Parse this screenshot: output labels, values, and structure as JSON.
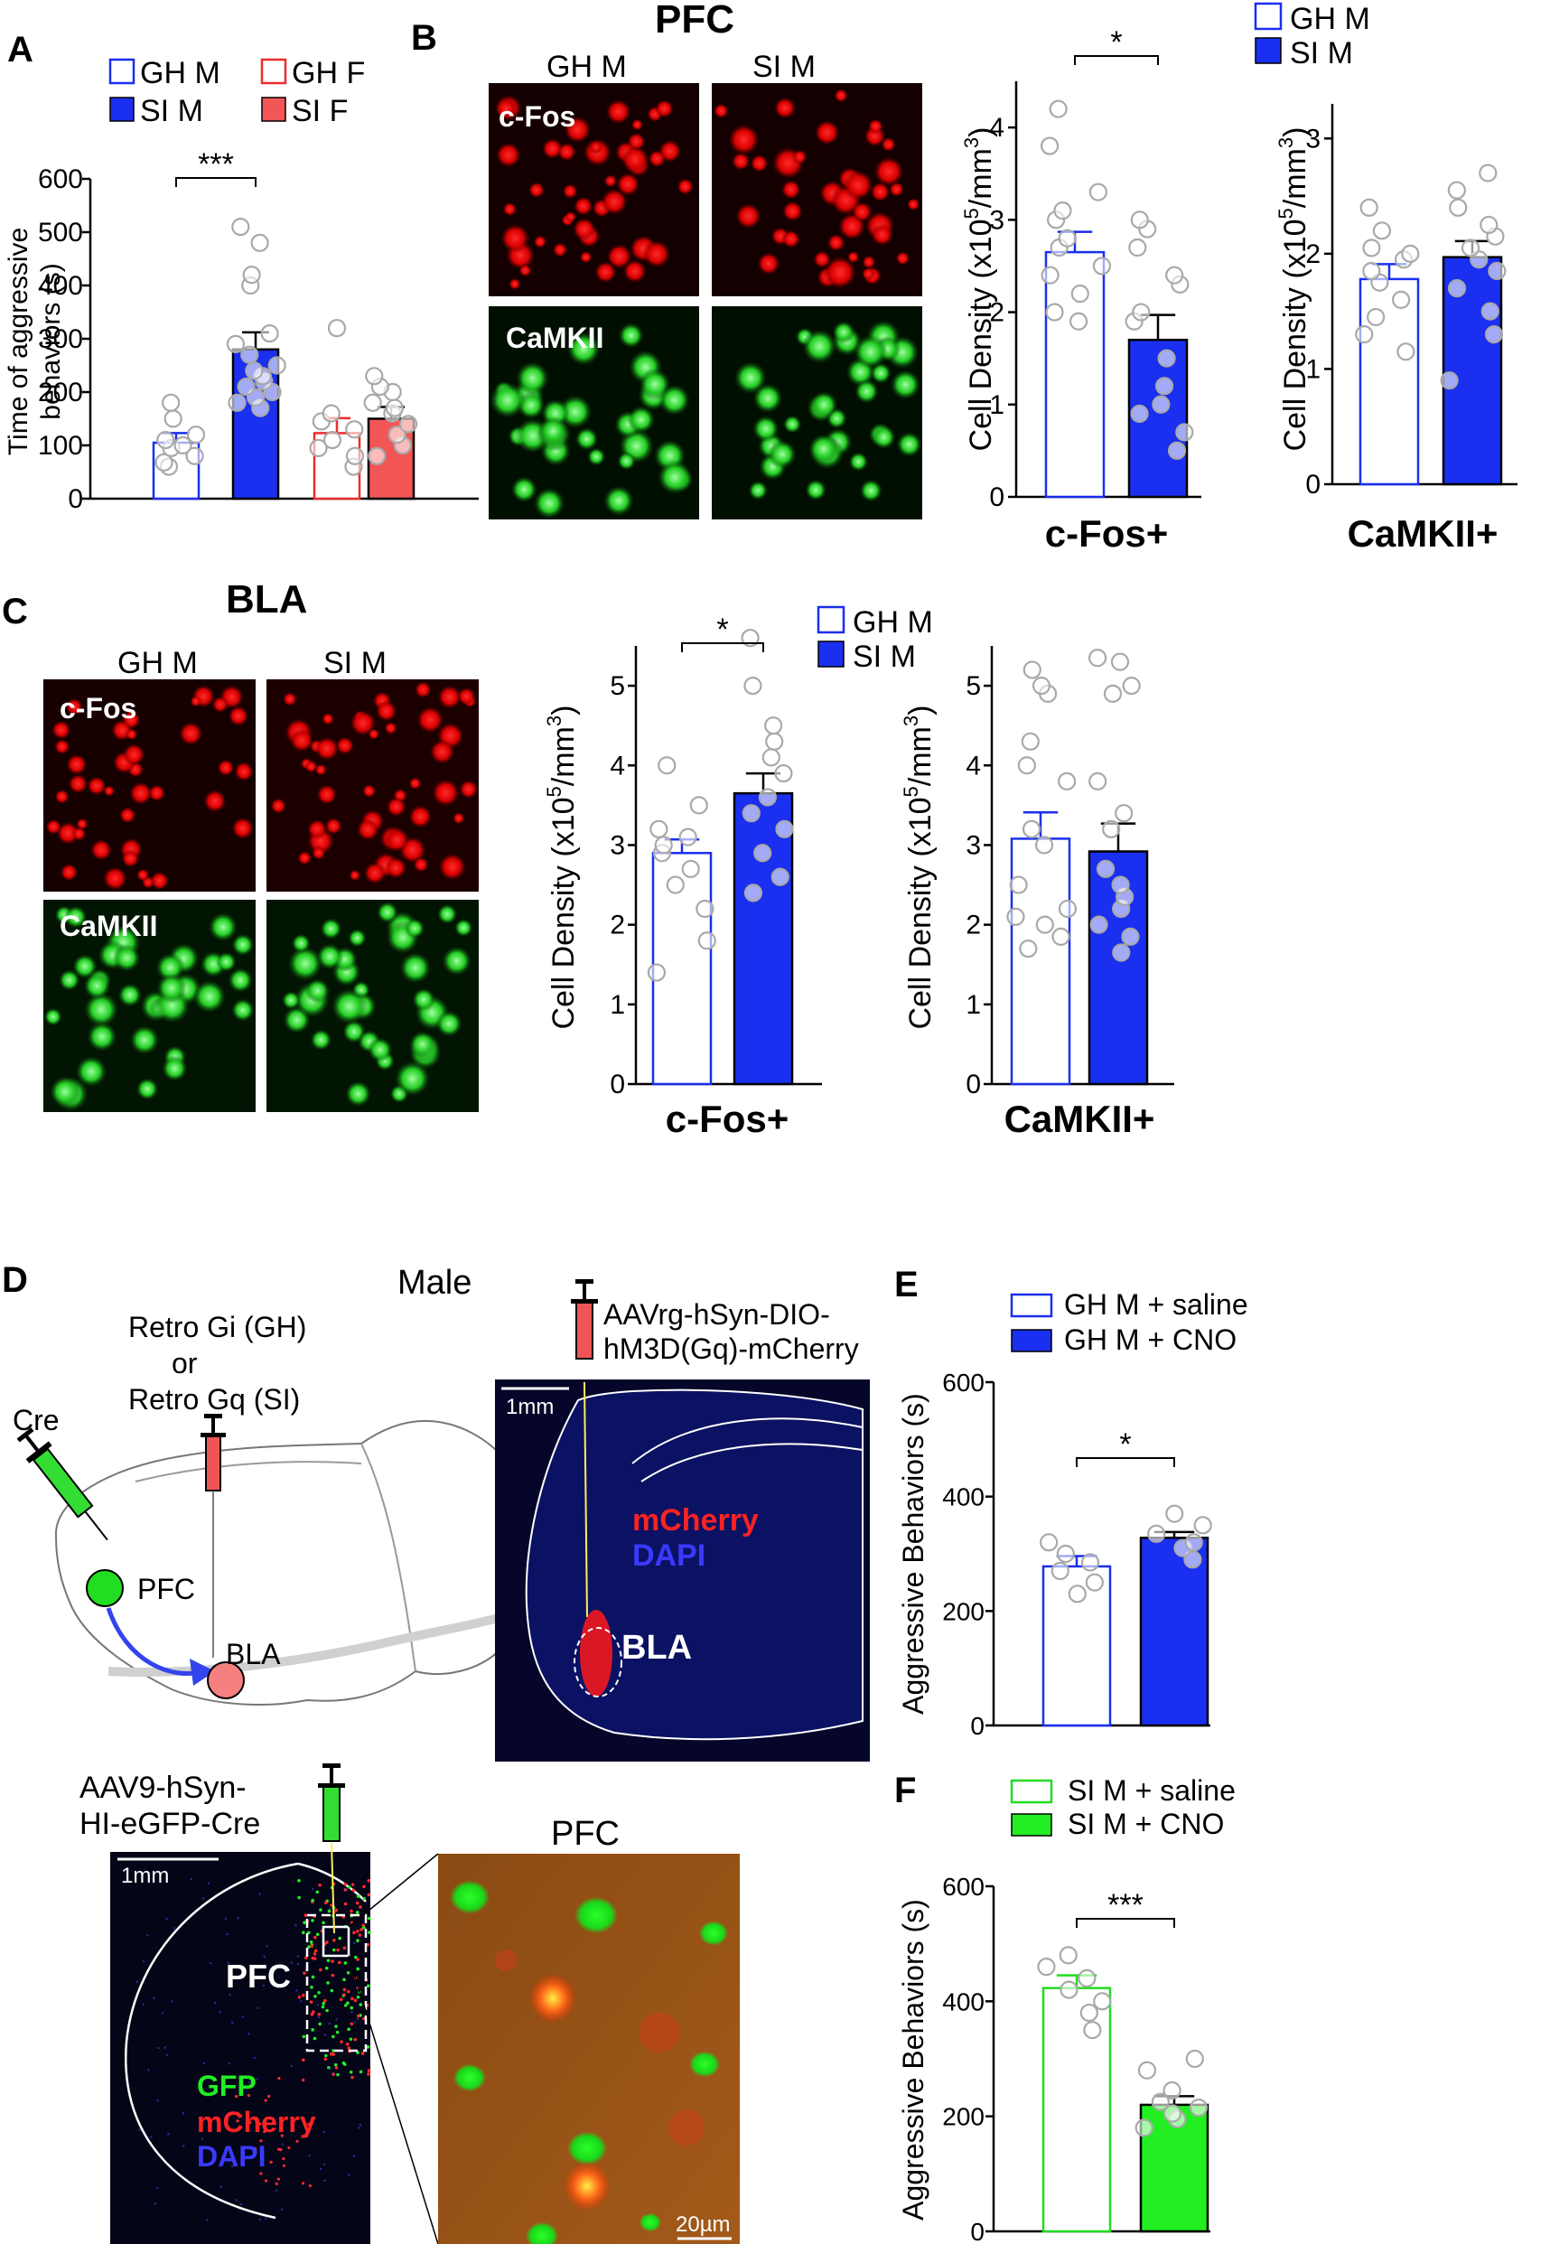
{
  "colors": {
    "gh": "#1a2ff0",
    "si": "#1a2ff0",
    "ghf": "#ee2b2b",
    "sif": "#f25656",
    "dot": "#a9a9a9",
    "green": "#22dd22",
    "red": "#ee1111",
    "blue": "#3333ff"
  },
  "panels": {
    "A": "A",
    "B": "B",
    "C": "C",
    "D": "D",
    "E": "E",
    "F": "F"
  },
  "sig": {
    "a": "***",
    "b": "*",
    "c": "*",
    "e": "*",
    "f": "***"
  },
  "micro": {
    "pfc_title": "PFC",
    "bla_title": "BLA",
    "col_gh": "GH M",
    "col_si": "SI M",
    "row_cfos": "c-Fos",
    "row_camk": "CaMKII"
  },
  "diagram": {
    "cre": "Cre",
    "retro1": "Retro Gi (GH)",
    "retro2": "or",
    "retro3": "Retro Gq (SI)",
    "pfc": "PFC",
    "bla": "BLA",
    "male": "Male",
    "aav_rg1": "AAVrg-hSyn-DIO-",
    "aav_rg2": "hM3D(Gq)-mCherry",
    "scale1": "1mm",
    "mcherry": "mCherry",
    "dapi": "DAPI",
    "bla_label": "BLA",
    "aav9_1": "AAV9-hSyn-",
    "aav9_2": "HI-eGFP-Cre",
    "scale2": "1mm",
    "pfc_label": "PFC",
    "gfp": "GFP",
    "mcherry2": "mCherry",
    "dapi2": "DAPI",
    "zoom_title": "PFC",
    "scale3": "20µm"
  },
  "chart_data": [
    {
      "id": "A",
      "type": "bar",
      "categories": [
        "GH M",
        "SI M",
        "GH F",
        "SI F"
      ],
      "values": [
        105,
        280,
        123,
        150
      ],
      "errors": [
        18,
        32,
        28,
        22
      ],
      "points": [
        [
          60,
          68,
          80,
          95,
          100,
          110,
          120,
          150,
          180
        ],
        [
          170,
          180,
          190,
          200,
          210,
          220,
          230,
          240,
          250,
          270,
          290,
          310,
          400,
          420,
          480,
          510
        ],
        [
          60,
          80,
          95,
          110,
          130,
          145,
          160,
          320
        ],
        [
          80,
          100,
          120,
          140,
          160,
          170,
          180,
          200,
          210,
          230
        ]
      ],
      "legend": [
        "GH M",
        "SI M",
        "GH F",
        "SI F"
      ],
      "ylabel1": "Time of aggressive",
      "ylabel2": "behaviors (s)",
      "ylim": [
        0,
        600
      ],
      "yticks": [
        "0",
        "100",
        "200",
        "300",
        "400",
        "500",
        "600"
      ]
    },
    {
      "id": "B1",
      "type": "bar",
      "categories": [
        "GH M",
        "SI M"
      ],
      "values": [
        2.65,
        1.7
      ],
      "errors": [
        0.22,
        0.27
      ],
      "points": [
        [
          1.9,
          2.0,
          2.2,
          2.4,
          2.5,
          2.7,
          2.8,
          3.0,
          3.1,
          3.3,
          3.8,
          4.2
        ],
        [
          0.5,
          0.7,
          0.9,
          1.0,
          1.2,
          1.5,
          1.9,
          2.0,
          2.3,
          2.4,
          2.7,
          2.9,
          3.0
        ]
      ],
      "xlabel": "c-Fos+",
      "ylabel": "Cell Density (x10",
      "ylabel_sup": "5",
      "ylabel_unit": "/mm",
      "ylabel_sup2": "3",
      "ylabel_end": ")",
      "ylim": [
        0,
        4.5
      ],
      "yticks": [
        "0",
        "1",
        "2",
        "3",
        "4"
      ],
      "legend": [
        "GH M",
        "SI M"
      ]
    },
    {
      "id": "B2",
      "type": "bar",
      "categories": [
        "GH M",
        "SI M"
      ],
      "values": [
        1.78,
        1.97
      ],
      "errors": [
        0.13,
        0.14
      ],
      "points": [
        [
          1.15,
          1.3,
          1.45,
          1.6,
          1.75,
          1.85,
          1.95,
          2.0,
          2.05,
          2.2,
          2.4
        ],
        [
          0.9,
          1.3,
          1.5,
          1.7,
          1.85,
          1.95,
          2.05,
          2.15,
          2.25,
          2.4,
          2.55,
          2.7
        ]
      ],
      "xlabel": "CaMKII+",
      "ylabel": "Cell Density (x10",
      "ylabel_sup": "5",
      "ylabel_unit": "/mm",
      "ylabel_sup2": "3",
      "ylabel_end": ")",
      "ylim": [
        0,
        3.3
      ],
      "yticks": [
        "0",
        "1",
        "2",
        "3"
      ]
    },
    {
      "id": "C1",
      "type": "bar",
      "categories": [
        "GH M",
        "SI M"
      ],
      "values": [
        2.9,
        3.65
      ],
      "errors": [
        0.17,
        0.25
      ],
      "points": [
        [
          1.4,
          1.8,
          2.2,
          2.5,
          2.7,
          2.9,
          3.0,
          3.1,
          3.2,
          3.5,
          4.0
        ],
        [
          2.4,
          2.6,
          2.9,
          3.2,
          3.4,
          3.6,
          3.9,
          4.1,
          4.3,
          4.5,
          5.0,
          5.6
        ]
      ],
      "xlabel": "c-Fos+",
      "ylabel": "Cell Density (x10",
      "ylabel_sup": "5",
      "ylabel_unit": "/mm",
      "ylabel_sup2": "3",
      "ylabel_end": ")",
      "ylim": [
        0,
        5.5
      ],
      "yticks": [
        "0",
        "1",
        "2",
        "3",
        "4",
        "5"
      ],
      "legend": [
        "GH M",
        "SI M"
      ]
    },
    {
      "id": "C2",
      "type": "bar",
      "categories": [
        "GH M",
        "SI M"
      ],
      "values": [
        3.08,
        2.92
      ],
      "errors": [
        0.33,
        0.35
      ],
      "points": [
        [
          1.7,
          1.85,
          2.0,
          2.1,
          2.2,
          2.5,
          3.0,
          3.2,
          3.8,
          4.0,
          4.3,
          4.9,
          5.0,
          5.2
        ],
        [
          1.65,
          1.85,
          2.0,
          2.2,
          2.35,
          2.5,
          2.7,
          3.2,
          3.4,
          3.8,
          4.9,
          5.0,
          5.3,
          5.35
        ]
      ],
      "xlabel": "CaMKII+",
      "ylabel": "Cell Density (x10",
      "ylabel_sup": "5",
      "ylabel_unit": "/mm",
      "ylabel_sup2": "3",
      "ylabel_end": ")",
      "ylim": [
        0,
        5.5
      ],
      "yticks": [
        "0",
        "1",
        "2",
        "3",
        "4",
        "5"
      ]
    },
    {
      "id": "E",
      "type": "bar",
      "categories": [
        "GH M + saline",
        "GH M + CNO"
      ],
      "values": [
        278,
        328
      ],
      "errors": [
        18,
        10
      ],
      "points": [
        [
          230,
          250,
          270,
          285,
          300,
          320
        ],
        [
          290,
          310,
          320,
          335,
          350,
          370
        ]
      ],
      "ylabel": "Aggressive Behaviors (s)",
      "ylim": [
        0,
        600
      ],
      "yticks": [
        "0",
        "200",
        "400",
        "600"
      ],
      "legend": [
        "GH M + saline",
        "GH M + CNO"
      ]
    },
    {
      "id": "F",
      "type": "bar",
      "categories": [
        "SI M + saline",
        "SI M + CNO"
      ],
      "values": [
        423,
        220
      ],
      "errors": [
        22,
        15
      ],
      "points": [
        [
          350,
          380,
          400,
          420,
          440,
          460,
          480
        ],
        [
          180,
          195,
          205,
          215,
          225,
          245,
          280,
          300
        ]
      ],
      "ylabel": "Aggressive Behaviors (s)",
      "ylim": [
        0,
        600
      ],
      "yticks": [
        "0",
        "200",
        "400",
        "600"
      ],
      "legend": [
        "SI M + saline",
        "SI M + CNO"
      ]
    }
  ]
}
